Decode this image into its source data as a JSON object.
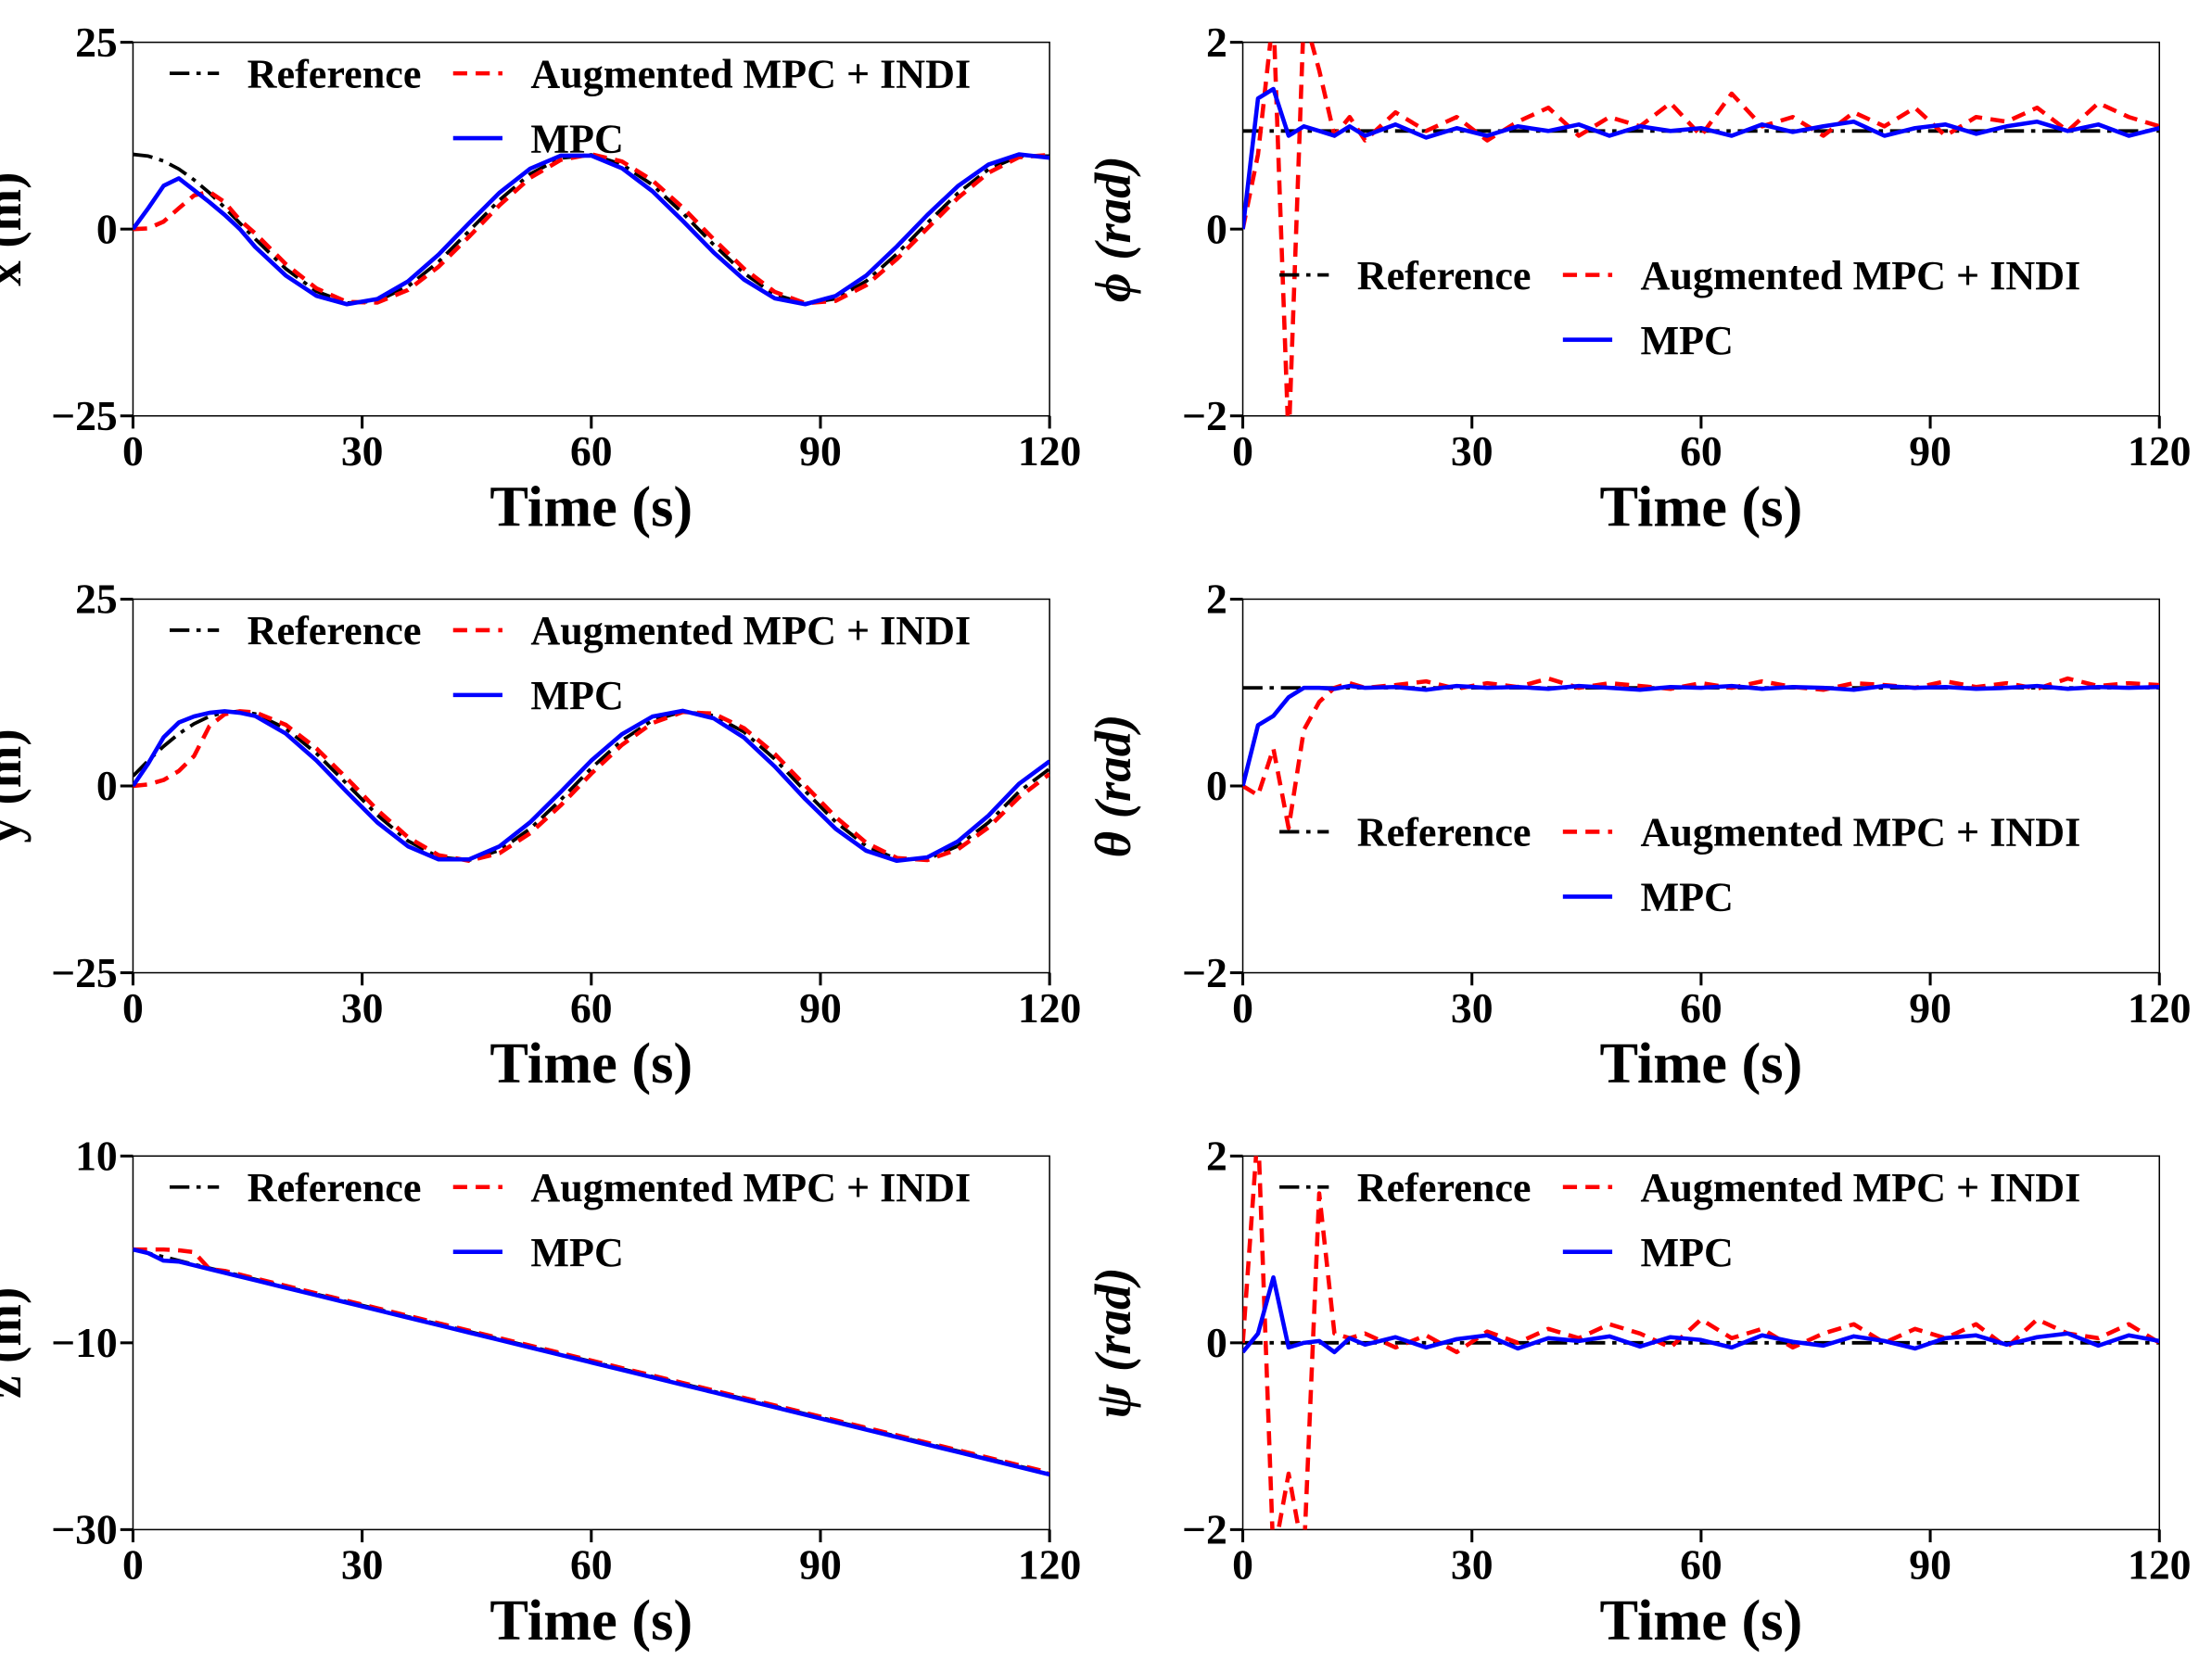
{
  "legend": {
    "reference": "Reference",
    "augmented": "Augmented MPC + INDI",
    "mpc": "MPC"
  },
  "colors": {
    "reference": "#000000",
    "augmented": "#ff0000",
    "mpc": "#0000ff"
  },
  "chart_data": [
    {
      "id": "x",
      "type": "line",
      "title": "",
      "xlabel": "Time (s)",
      "ylabel": "x (m)",
      "xlim": [
        0,
        120
      ],
      "ylim": [
        -25,
        25
      ],
      "xticks": [
        0,
        30,
        60,
        90,
        120
      ],
      "xtick_labels": [
        "0",
        "30",
        "60",
        "90",
        "120"
      ],
      "yticks": [
        25,
        0,
        -25
      ],
      "ytick_labels": [
        "25",
        "0",
        "−25"
      ],
      "legend_placement": "top",
      "x": [
        0,
        2,
        4,
        6,
        8,
        10,
        12,
        14,
        16,
        20,
        24,
        28,
        32,
        36,
        40,
        44,
        48,
        52,
        56,
        60,
        64,
        68,
        72,
        76,
        80,
        84,
        88,
        92,
        96,
        100,
        104,
        108,
        112,
        116,
        120
      ],
      "series": [
        {
          "name": "Reference",
          "values": [
            10,
            9.77,
            9.11,
            8.03,
            6.58,
            4.85,
            2.88,
            0.8,
            -1.33,
            -5.31,
            -8.33,
            -9.88,
            -9.63,
            -7.68,
            -4.37,
            -0.26,
            3.9,
            7.37,
            9.49,
            9.94,
            8.68,
            5.93,
            2.11,
            -2.07,
            -5.9,
            -8.76,
            -9.98,
            -9.33,
            -6.96,
            -3.32,
            0.83,
            4.82,
            8.0,
            9.78,
            9.77
          ]
        },
        {
          "name": "Augmented MPC + INDI",
          "values": [
            0,
            0.1,
            1.0,
            2.8,
            4.5,
            5.0,
            3.6,
            1.2,
            -0.59,
            -4.68,
            -7.92,
            -9.76,
            -9.83,
            -8.16,
            -5.04,
            -1.01,
            3.21,
            6.87,
            9.26,
            10.02,
            9.05,
            6.53,
            2.84,
            -1.34,
            -5.3,
            -8.4,
            -9.93,
            -9.6,
            -7.5,
            -4.02,
            0.09,
            4.17,
            7.55,
            9.62,
            9.93
          ]
        },
        {
          "name": "MPC",
          "values": [
            0,
            2.8,
            5.8,
            6.8,
            5.2,
            3.6,
            1.9,
            0.0,
            -2.39,
            -6.21,
            -8.92,
            -10.05,
            -9.35,
            -7.0,
            -3.41,
            0.8,
            4.88,
            8.09,
            9.83,
            9.83,
            8.15,
            5.07,
            1.07,
            -3.11,
            -6.76,
            -9.27,
            -10.05,
            -8.95,
            -6.2,
            -2.32,
            1.89,
            5.75,
            8.64,
            10.0,
            9.54
          ]
        }
      ]
    },
    {
      "id": "phi",
      "type": "line",
      "title": "",
      "xlabel": "Time (s)",
      "ylabel": "ϕ (rad)",
      "xlim": [
        0,
        120
      ],
      "ylim": [
        -2,
        2
      ],
      "xticks": [
        0,
        30,
        60,
        90,
        120
      ],
      "xtick_labels": [
        "0",
        "30",
        "60",
        "90",
        "120"
      ],
      "yticks": [
        2,
        0,
        -2
      ],
      "ytick_labels": [
        "2",
        "0",
        "−2"
      ],
      "legend_placement": "center",
      "x": [
        0,
        2,
        4,
        6,
        8,
        10,
        12,
        14,
        16,
        20,
        24,
        28,
        32,
        36,
        40,
        44,
        48,
        52,
        56,
        60,
        64,
        68,
        72,
        76,
        80,
        84,
        88,
        92,
        96,
        100,
        104,
        108,
        112,
        116,
        120
      ],
      "series": [
        {
          "name": "Reference",
          "values": [
            1.05,
            1.05,
            1.05,
            1.05,
            1.05,
            1.05,
            1.05,
            1.05,
            1.05,
            1.05,
            1.05,
            1.05,
            1.05,
            1.05,
            1.05,
            1.05,
            1.05,
            1.05,
            1.05,
            1.05,
            1.05,
            1.05,
            1.05,
            1.05,
            1.05,
            1.05,
            1.05,
            1.05,
            1.05,
            1.05,
            1.05,
            1.05,
            1.05,
            1.05,
            1.05
          ]
        },
        {
          "name": "Augmented MPC + INDI",
          "values": [
            0,
            0.8,
            2.3,
            -2.3,
            2.3,
            1.7,
            1.0,
            1.2,
            0.95,
            1.25,
            1.05,
            1.2,
            0.95,
            1.15,
            1.3,
            1.0,
            1.2,
            1.1,
            1.35,
            1.0,
            1.45,
            1.1,
            1.2,
            1.0,
            1.25,
            1.1,
            1.3,
            1.0,
            1.2,
            1.15,
            1.3,
            1.05,
            1.35,
            1.2,
            1.1
          ]
        },
        {
          "name": "MPC",
          "values": [
            0,
            1.4,
            1.5,
            1.0,
            1.1,
            1.05,
            1.0,
            1.1,
            1.0,
            1.12,
            0.98,
            1.08,
            1.0,
            1.1,
            1.05,
            1.12,
            1.0,
            1.1,
            1.05,
            1.08,
            1.0,
            1.12,
            1.04,
            1.1,
            1.15,
            1.0,
            1.08,
            1.12,
            1.02,
            1.1,
            1.15,
            1.05,
            1.12,
            1.0,
            1.08
          ]
        }
      ]
    },
    {
      "id": "y",
      "type": "line",
      "title": "",
      "xlabel": "Time (s)",
      "ylabel": "y (m)",
      "xlim": [
        0,
        120
      ],
      "ylim": [
        -25,
        25
      ],
      "xticks": [
        0,
        30,
        60,
        90,
        120
      ],
      "xtick_labels": [
        "0",
        "30",
        "60",
        "90",
        "120"
      ],
      "yticks": [
        25,
        0,
        -25
      ],
      "ytick_labels": [
        "25",
        "0",
        "−25"
      ],
      "legend_placement": "top",
      "x": [
        0,
        2,
        4,
        6,
        8,
        10,
        12,
        14,
        16,
        20,
        24,
        28,
        32,
        36,
        40,
        44,
        48,
        52,
        56,
        60,
        64,
        68,
        72,
        76,
        80,
        84,
        88,
        92,
        96,
        100,
        104,
        108,
        112,
        116,
        120
      ],
      "series": [
        {
          "name": "Reference",
          "values": [
            1.33,
            3.39,
            5.3,
            6.99,
            8.33,
            9.31,
            9.86,
            9.99,
            9.64,
            7.7,
            4.37,
            0.26,
            -3.9,
            -7.36,
            -9.5,
            -9.94,
            -8.61,
            -5.72,
            -1.86,
            2.37,
            6.08,
            8.77,
            9.97,
            9.42,
            7.22,
            3.62,
            -0.69,
            -4.81,
            -8.04,
            -9.79,
            -9.77,
            -8.04,
            -4.89,
            -0.78,
            2.3
          ]
        },
        {
          "name": "Augmented MPC + INDI",
          "values": [
            0,
            0.2,
            0.8,
            2.0,
            4.0,
            8.0,
            9.6,
            10.0,
            9.84,
            8.18,
            5.04,
            1.01,
            -3.21,
            -6.86,
            -9.27,
            -10.02,
            -8.99,
            -6.33,
            -2.6,
            1.65,
            5.49,
            8.41,
            9.91,
            9.67,
            7.74,
            4.31,
            0.05,
            -4.16,
            -7.6,
            -9.64,
            -9.93,
            -8.48,
            -5.54,
            -1.52,
            1.6
          ]
        },
        {
          "name": "MPC",
          "values": [
            0,
            3.0,
            6.5,
            8.5,
            9.3,
            9.8,
            10.0,
            9.8,
            9.36,
            7.02,
            3.41,
            -0.81,
            -4.88,
            -8.08,
            -9.83,
            -9.83,
            -8.07,
            -4.85,
            -0.81,
            3.4,
            6.93,
            9.28,
            10.06,
            9.06,
            6.48,
            2.63,
            -1.75,
            -5.74,
            -8.67,
            -10.01,
            -9.54,
            -7.41,
            -3.96,
            0.28,
            3.3
          ]
        }
      ]
    },
    {
      "id": "theta",
      "type": "line",
      "title": "",
      "xlabel": "Time (s)",
      "ylabel": "θ (rad)",
      "xlim": [
        0,
        120
      ],
      "ylim": [
        -2,
        2
      ],
      "xticks": [
        0,
        30,
        60,
        90,
        120
      ],
      "xtick_labels": [
        "0",
        "30",
        "60",
        "90",
        "120"
      ],
      "yticks": [
        2,
        0,
        -2
      ],
      "ytick_labels": [
        "2",
        "0",
        "−2"
      ],
      "legend_placement": "center",
      "x": [
        0,
        2,
        4,
        6,
        8,
        10,
        12,
        14,
        16,
        20,
        24,
        28,
        32,
        36,
        40,
        44,
        48,
        52,
        56,
        60,
        64,
        68,
        72,
        76,
        80,
        84,
        88,
        92,
        96,
        100,
        104,
        108,
        112,
        116,
        120
      ],
      "series": [
        {
          "name": "Reference",
          "values": [
            1.05,
            1.05,
            1.05,
            1.05,
            1.05,
            1.05,
            1.05,
            1.05,
            1.05,
            1.05,
            1.05,
            1.05,
            1.05,
            1.05,
            1.05,
            1.05,
            1.05,
            1.05,
            1.05,
            1.05,
            1.05,
            1.05,
            1.05,
            1.05,
            1.05,
            1.05,
            1.05,
            1.05,
            1.05,
            1.05,
            1.05,
            1.05,
            1.05,
            1.05,
            1.05
          ]
        },
        {
          "name": "Augmented MPC + INDI",
          "values": [
            0,
            -0.1,
            0.4,
            -0.45,
            0.6,
            0.9,
            1.05,
            1.1,
            1.05,
            1.08,
            1.12,
            1.04,
            1.1,
            1.06,
            1.15,
            1.05,
            1.1,
            1.07,
            1.04,
            1.1,
            1.05,
            1.12,
            1.06,
            1.03,
            1.1,
            1.08,
            1.05,
            1.12,
            1.06,
            1.1,
            1.04,
            1.15,
            1.07,
            1.1,
            1.08
          ]
        },
        {
          "name": "MPC",
          "values": [
            0,
            0.65,
            0.75,
            0.95,
            1.05,
            1.05,
            1.04,
            1.07,
            1.05,
            1.06,
            1.03,
            1.07,
            1.05,
            1.06,
            1.04,
            1.07,
            1.05,
            1.03,
            1.06,
            1.05,
            1.07,
            1.04,
            1.06,
            1.05,
            1.03,
            1.07,
            1.05,
            1.06,
            1.04,
            1.05,
            1.07,
            1.04,
            1.06,
            1.05,
            1.06
          ]
        }
      ]
    },
    {
      "id": "z",
      "type": "line",
      "title": "",
      "xlabel": "Time (s)",
      "ylabel": "z (m)",
      "xlim": [
        0,
        120
      ],
      "ylim": [
        -30,
        10
      ],
      "xticks": [
        0,
        30,
        60,
        90,
        120
      ],
      "xtick_labels": [
        "0",
        "30",
        "60",
        "90",
        "120"
      ],
      "yticks": [
        10,
        -10,
        -30
      ],
      "ytick_labels": [
        "10",
        "−10",
        "−30"
      ],
      "legend_placement": "top",
      "x": [
        0,
        2,
        4,
        6,
        8,
        10,
        12,
        14,
        16,
        20,
        24,
        28,
        32,
        36,
        40,
        44,
        48,
        52,
        56,
        60,
        64,
        68,
        72,
        76,
        80,
        84,
        88,
        92,
        96,
        100,
        104,
        108,
        112,
        116,
        120
      ],
      "series": [
        {
          "name": "Reference",
          "values": [
            0,
            -0.4,
            -0.8,
            -1.2,
            -1.6,
            -2.0,
            -2.4,
            -2.8,
            -3.2,
            -4.0,
            -4.8,
            -5.6,
            -6.4,
            -7.2,
            -8.0,
            -8.8,
            -9.6,
            -10.4,
            -11.2,
            -12.0,
            -12.8,
            -13.6,
            -14.4,
            -15.2,
            -16.0,
            -16.8,
            -17.6,
            -18.4,
            -19.2,
            -20.0,
            -20.8,
            -21.6,
            -22.4,
            -23.2,
            -24.0
          ]
        },
        {
          "name": "Augmented MPC + INDI",
          "values": [
            0,
            0,
            0,
            -0.1,
            -0.3,
            -2.1,
            -2.3,
            -2.7,
            -3.1,
            -3.9,
            -4.7,
            -5.5,
            -6.3,
            -7.1,
            -7.9,
            -8.7,
            -9.5,
            -10.3,
            -11.1,
            -11.9,
            -12.7,
            -13.5,
            -14.3,
            -15.1,
            -15.9,
            -16.7,
            -17.5,
            -18.3,
            -19.1,
            -19.9,
            -20.7,
            -21.5,
            -22.3,
            -23.1,
            -23.9
          ]
        },
        {
          "name": "MPC",
          "values": [
            0,
            -0.4,
            -1.2,
            -1.3,
            -1.7,
            -2.1,
            -2.5,
            -2.9,
            -3.3,
            -4.1,
            -4.9,
            -5.7,
            -6.5,
            -7.3,
            -8.1,
            -8.9,
            -9.7,
            -10.5,
            -11.3,
            -12.1,
            -12.9,
            -13.7,
            -14.5,
            -15.3,
            -16.1,
            -16.9,
            -17.7,
            -18.5,
            -19.3,
            -20.1,
            -20.9,
            -21.7,
            -22.5,
            -23.3,
            -24.1
          ]
        }
      ]
    },
    {
      "id": "psi",
      "type": "line",
      "title": "",
      "xlabel": "Time (s)",
      "ylabel": "ψ (rad)",
      "xlim": [
        0,
        120
      ],
      "ylim": [
        -2,
        2
      ],
      "xticks": [
        0,
        30,
        60,
        90,
        120
      ],
      "xtick_labels": [
        "0",
        "30",
        "60",
        "90",
        "120"
      ],
      "yticks": [
        2,
        0,
        -2
      ],
      "ytick_labels": [
        "2",
        "0",
        "−2"
      ],
      "legend_placement": "top",
      "x": [
        0,
        2,
        4,
        6,
        8,
        10,
        12,
        14,
        16,
        20,
        24,
        28,
        32,
        36,
        40,
        44,
        48,
        52,
        56,
        60,
        64,
        68,
        72,
        76,
        80,
        84,
        88,
        92,
        96,
        100,
        104,
        108,
        112,
        116,
        120
      ],
      "series": [
        {
          "name": "Reference",
          "values": [
            0,
            0,
            0,
            0,
            0,
            0,
            0,
            0,
            0,
            0,
            0,
            0,
            0,
            0,
            0,
            0,
            0,
            0,
            0,
            0,
            0,
            0,
            0,
            0,
            0,
            0,
            0,
            0,
            0,
            0,
            0,
            0,
            0,
            0,
            0
          ]
        },
        {
          "name": "Augmented MPC + INDI",
          "values": [
            0,
            2.3,
            -2.3,
            -1.4,
            -2.3,
            1.6,
            0.1,
            0.05,
            0.1,
            -0.05,
            0.08,
            -0.1,
            0.12,
            0.0,
            0.15,
            0.05,
            0.2,
            0.1,
            -0.05,
            0.25,
            0.05,
            0.15,
            -0.05,
            0.1,
            0.2,
            0.0,
            0.15,
            0.05,
            0.2,
            -0.05,
            0.25,
            0.1,
            0.05,
            0.2,
            0.0
          ]
        },
        {
          "name": "MPC",
          "values": [
            -0.1,
            0.1,
            0.7,
            -0.05,
            0.0,
            0.02,
            -0.1,
            0.05,
            -0.02,
            0.06,
            -0.05,
            0.04,
            0.08,
            -0.06,
            0.05,
            0.02,
            0.07,
            -0.04,
            0.06,
            0.03,
            -0.05,
            0.08,
            0.01,
            -0.03,
            0.07,
            0.02,
            -0.06,
            0.05,
            0.08,
            -0.02,
            0.06,
            0.1,
            -0.03,
            0.08,
            0.02
          ]
        }
      ]
    }
  ]
}
